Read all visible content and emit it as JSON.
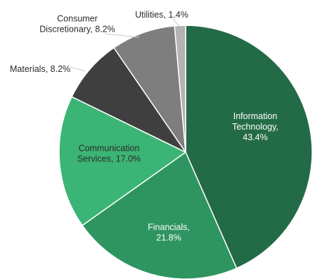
{
  "chart_data": {
    "type": "pie",
    "slices": [
      {
        "name": "Information Technology",
        "label": "Information\nTechnology,\n43.4%",
        "value": 43.4,
        "color": "#236b47",
        "label_color": "#ffffff"
      },
      {
        "name": "Financials",
        "label": "Financials,\n21.8%",
        "value": 21.8,
        "color": "#2e9460",
        "label_color": "#ffffff"
      },
      {
        "name": "Communication Services",
        "label": "Communication\nServices, 17.0%",
        "value": 17.0,
        "color": "#3bb575",
        "label_color": "#2b2b2b"
      },
      {
        "name": "Materials",
        "label": "Materials, 8.2%",
        "value": 8.2,
        "color": "#3f3f3f",
        "label_color": "#2b2b2b"
      },
      {
        "name": "Consumer Discretionary",
        "label": "Consumer\nDiscretionary, 8.2%",
        "value": 8.2,
        "color": "#7e7e7e",
        "label_color": "#2b2b2b"
      },
      {
        "name": "Utilities",
        "label": "Utilities, 1.4%",
        "value": 1.4,
        "color": "#b3b3b3",
        "label_color": "#2b2b2b"
      }
    ]
  }
}
